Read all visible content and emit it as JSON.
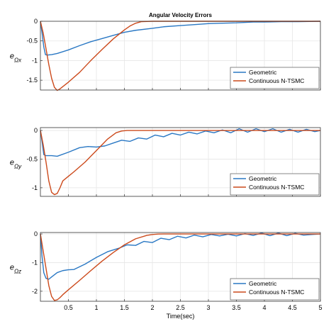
{
  "chart_data": [
    {
      "type": "line",
      "title": "Angular Velocity Errors",
      "ylabel": "e_{Ωx}",
      "xlabel": "",
      "xlim": [
        0,
        5
      ],
      "ylim": [
        -1.75,
        0
      ],
      "yticks": [
        "0",
        "-0.5",
        "-1",
        "-1.5"
      ],
      "xticks": [],
      "grid": true,
      "legend_position": "bottom-right",
      "series": [
        {
          "name": "Geometric",
          "color": "#2a78c4",
          "x": [
            0,
            0.03,
            0.06,
            0.09,
            0.12,
            0.2,
            0.3,
            0.5,
            0.7,
            0.9,
            1.1,
            1.3,
            1.5,
            1.7,
            2.0,
            2.2,
            2.5,
            2.8,
            3.0,
            3.2,
            3.5,
            3.8,
            4.0,
            4.3,
            4.6,
            5.0
          ],
          "y": [
            0,
            -0.3,
            -0.65,
            -0.85,
            -0.86,
            -0.85,
            -0.82,
            -0.73,
            -0.62,
            -0.52,
            -0.44,
            -0.36,
            -0.28,
            -0.23,
            -0.18,
            -0.14,
            -0.11,
            -0.08,
            -0.06,
            -0.05,
            -0.04,
            -0.02,
            -0.02,
            -0.01,
            -0.01,
            0
          ]
        },
        {
          "name": "Continuous N-TSMC",
          "color": "#cc4a1c",
          "x": [
            0,
            0.05,
            0.1,
            0.15,
            0.2,
            0.25,
            0.3,
            0.35,
            0.5,
            0.7,
            0.9,
            1.1,
            1.3,
            1.5,
            1.6,
            1.7,
            1.8,
            2.0,
            3.0,
            4.0,
            5.0
          ],
          "y": [
            0,
            -0.3,
            -0.7,
            -1.1,
            -1.45,
            -1.68,
            -1.76,
            -1.72,
            -1.55,
            -1.3,
            -1.0,
            -0.72,
            -0.45,
            -0.22,
            -0.12,
            -0.05,
            -0.01,
            0,
            0,
            0,
            0
          ]
        }
      ]
    },
    {
      "type": "line",
      "title": "",
      "ylabel": "e_{Ωy}",
      "xlabel": "",
      "xlim": [
        0,
        5
      ],
      "ylim": [
        -1.15,
        0.05
      ],
      "yticks": [
        "0",
        "-0.5",
        "-1"
      ],
      "xticks": [],
      "grid": true,
      "legend_position": "bottom-right",
      "series": [
        {
          "name": "Geometric",
          "color": "#2a78c4",
          "x": [
            0,
            0.03,
            0.06,
            0.1,
            0.2,
            0.3,
            0.5,
            0.7,
            0.85,
            1.0,
            1.15,
            1.3,
            1.45,
            1.6,
            1.75,
            1.9,
            2.05,
            2.2,
            2.35,
            2.5,
            2.65,
            2.8,
            2.95,
            3.1,
            3.25,
            3.4,
            3.55,
            3.7,
            3.85,
            4.0,
            4.15,
            4.3,
            4.45,
            4.6,
            4.75,
            4.9,
            5.0
          ],
          "y": [
            0,
            -0.2,
            -0.42,
            -0.44,
            -0.44,
            -0.45,
            -0.38,
            -0.3,
            -0.28,
            -0.29,
            -0.27,
            -0.22,
            -0.17,
            -0.19,
            -0.13,
            -0.15,
            -0.08,
            -0.11,
            -0.05,
            -0.08,
            -0.03,
            -0.06,
            -0.01,
            -0.04,
            0.01,
            -0.04,
            0.03,
            -0.03,
            0.03,
            -0.02,
            0.03,
            -0.03,
            0.02,
            -0.03,
            0.02,
            -0.02,
            0
          ]
        },
        {
          "name": "Continuous N-TSMC",
          "color": "#cc4a1c",
          "x": [
            0,
            0.05,
            0.1,
            0.15,
            0.2,
            0.25,
            0.3,
            0.35,
            0.4,
            0.5,
            0.6,
            0.8,
            1.0,
            1.2,
            1.35,
            1.45,
            1.55,
            2.0,
            3.0,
            4.0,
            5.0
          ],
          "y": [
            0,
            -0.25,
            -0.55,
            -0.88,
            -1.08,
            -1.12,
            -1.1,
            -1.0,
            -0.88,
            -0.8,
            -0.72,
            -0.55,
            -0.35,
            -0.15,
            -0.04,
            -0.01,
            0,
            0,
            0,
            0,
            0
          ]
        }
      ]
    },
    {
      "type": "line",
      "title": "",
      "ylabel": "e_{Ωz}",
      "xlabel": "Time(sec)",
      "xlim": [
        0,
        5
      ],
      "ylim": [
        -2.35,
        0.05
      ],
      "yticks": [
        "0",
        "-1",
        "-2"
      ],
      "xticks": [
        "0.5",
        "1",
        "1.5",
        "2",
        "2.5",
        "3",
        "3.5",
        "4",
        "4.5",
        "5"
      ],
      "grid": true,
      "legend_position": "bottom-right",
      "series": [
        {
          "name": "Geometric",
          "color": "#2a78c4",
          "x": [
            0,
            0.03,
            0.06,
            0.1,
            0.15,
            0.2,
            0.3,
            0.4,
            0.5,
            0.6,
            0.8,
            1.0,
            1.2,
            1.4,
            1.55,
            1.7,
            1.85,
            2.0,
            2.15,
            2.3,
            2.45,
            2.6,
            2.75,
            2.9,
            3.05,
            3.2,
            3.35,
            3.5,
            3.65,
            3.8,
            3.95,
            4.1,
            4.25,
            4.4,
            4.55,
            4.7,
            4.85,
            5.0
          ],
          "y": [
            0,
            -0.8,
            -1.35,
            -1.55,
            -1.58,
            -1.5,
            -1.35,
            -1.28,
            -1.25,
            -1.24,
            -1.05,
            -0.82,
            -0.62,
            -0.5,
            -0.38,
            -0.4,
            -0.26,
            -0.3,
            -0.15,
            -0.2,
            -0.08,
            -0.14,
            -0.04,
            -0.1,
            -0.02,
            -0.07,
            -0.01,
            -0.07,
            0.01,
            -0.05,
            0.03,
            -0.06,
            0.03,
            -0.06,
            0.02,
            -0.04,
            -0.02,
            0
          ]
        },
        {
          "name": "Continuous N-TSMC",
          "color": "#cc4a1c",
          "x": [
            0,
            0.05,
            0.1,
            0.15,
            0.2,
            0.25,
            0.3,
            0.35,
            0.4,
            0.5,
            0.7,
            0.9,
            1.1,
            1.3,
            1.5,
            1.7,
            1.9,
            2.0,
            2.1,
            2.2,
            3.0,
            4.0,
            5.0
          ],
          "y": [
            0,
            -0.6,
            -1.2,
            -1.8,
            -2.18,
            -2.32,
            -2.3,
            -2.22,
            -2.12,
            -1.95,
            -1.62,
            -1.28,
            -0.95,
            -0.65,
            -0.38,
            -0.17,
            -0.05,
            -0.02,
            -0.005,
            0,
            0,
            0,
            0
          ]
        }
      ]
    }
  ]
}
